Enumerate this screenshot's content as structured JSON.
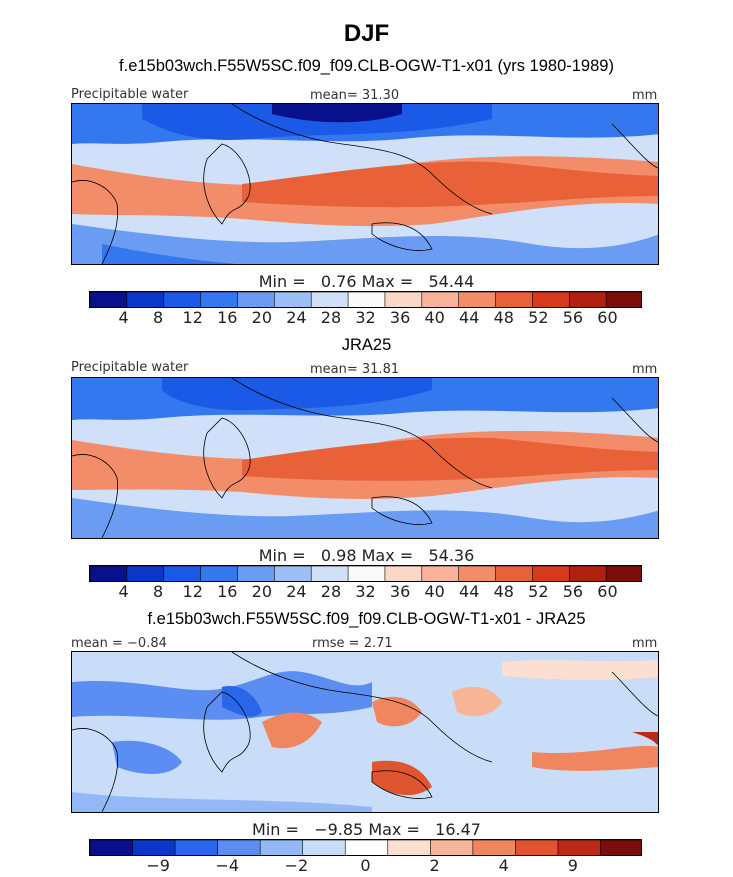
{
  "title": "DJF",
  "colors": {
    "sequential": [
      "#08108c",
      "#0b36c8",
      "#1a5ae6",
      "#3478f0",
      "#6a9cf3",
      "#9cc0f6",
      "#cfe0f8",
      "#f9f9f7",
      "#fad7c6",
      "#f8b39a",
      "#f28c69",
      "#e86139",
      "#d53a1c",
      "#b0200f",
      "#7d0d0a"
    ],
    "diverging": [
      "#08108c",
      "#0b36c8",
      "#2a66ea",
      "#5b8df2",
      "#93b8f5",
      "#c9dcf8",
      "#ffffff",
      "#fbe0d2",
      "#f7b598",
      "#ef8660",
      "#df5530",
      "#bb2a14",
      "#7d0d0a"
    ]
  },
  "panels": [
    {
      "id": "model",
      "title": "f.e15b03wch.F55W5SC.f09_f09.CLB-OGW-T1-x01 (yrs 1980-1989)",
      "left_label": "Precipitable water",
      "center_label": "mean=  31.30",
      "right_label": "mm",
      "min_label": "Min =",
      "min_value": "0.76",
      "max_label": "Max =",
      "max_value": "54.44",
      "colorbar_ticks": [
        "4",
        "8",
        "12",
        "16",
        "20",
        "24",
        "28",
        "32",
        "36",
        "40",
        "44",
        "48",
        "52",
        "56",
        "60"
      ]
    },
    {
      "id": "obs",
      "title": "JRA25",
      "left_label": "Precipitable water",
      "center_label": "mean=  31.81",
      "right_label": "mm",
      "min_label": "Min =",
      "min_value": "0.98",
      "max_label": "Max =",
      "max_value": "54.36",
      "colorbar_ticks": [
        "4",
        "8",
        "12",
        "16",
        "20",
        "24",
        "28",
        "32",
        "36",
        "40",
        "44",
        "48",
        "52",
        "56",
        "60"
      ]
    },
    {
      "id": "diff",
      "title": "f.e15b03wch.F55W5SC.f09_f09.CLB-OGW-T1-x01 - JRA25",
      "left_label": "mean =  −0.84",
      "center_label": "rmse =   2.71",
      "right_label": "mm",
      "min_label": "Min =",
      "min_value": "−9.85",
      "max_label": "Max =",
      "max_value": "16.47",
      "colorbar_ticks": [
        "−9",
        "−4",
        "−2",
        "0",
        "2",
        "4",
        "9"
      ]
    }
  ]
}
